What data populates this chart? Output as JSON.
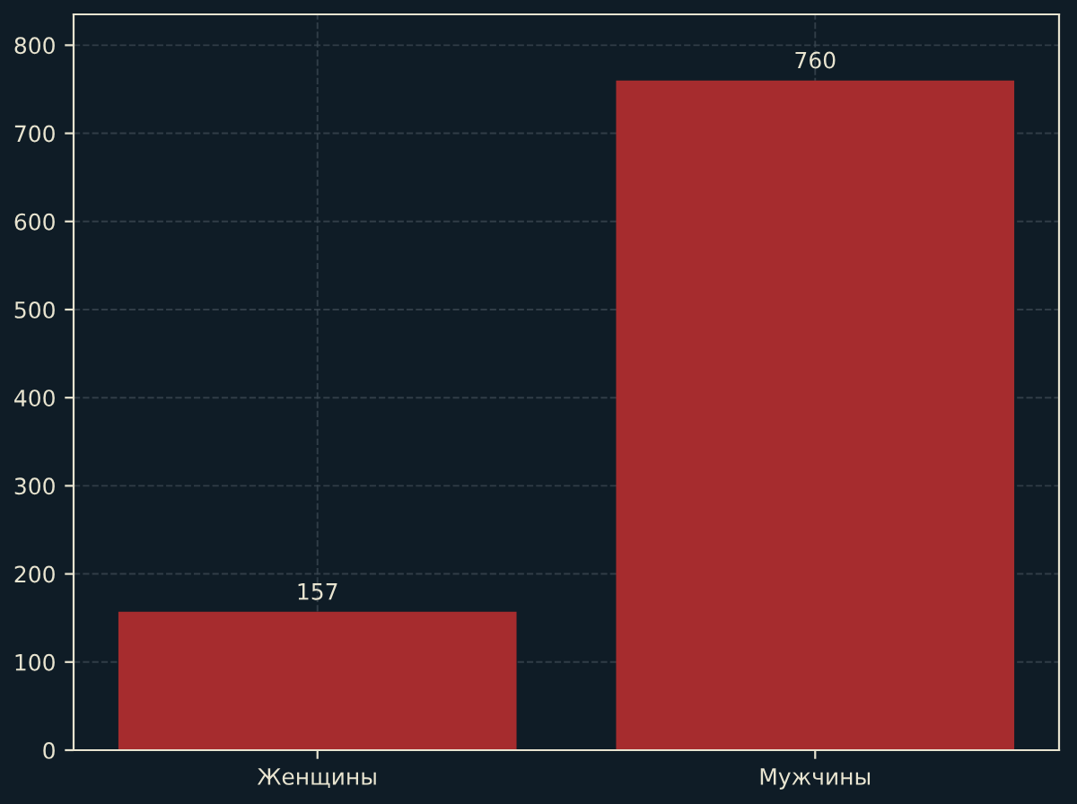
{
  "chart_data": {
    "type": "bar",
    "categories": [
      "Женщины",
      "Мужчины"
    ],
    "values": [
      157,
      760
    ],
    "color": "#a62c2e",
    "ylim": [
      0,
      835
    ],
    "yticks": [
      0,
      100,
      200,
      300,
      400,
      500,
      600,
      700,
      800
    ],
    "grid": true,
    "data_labels": true
  }
}
